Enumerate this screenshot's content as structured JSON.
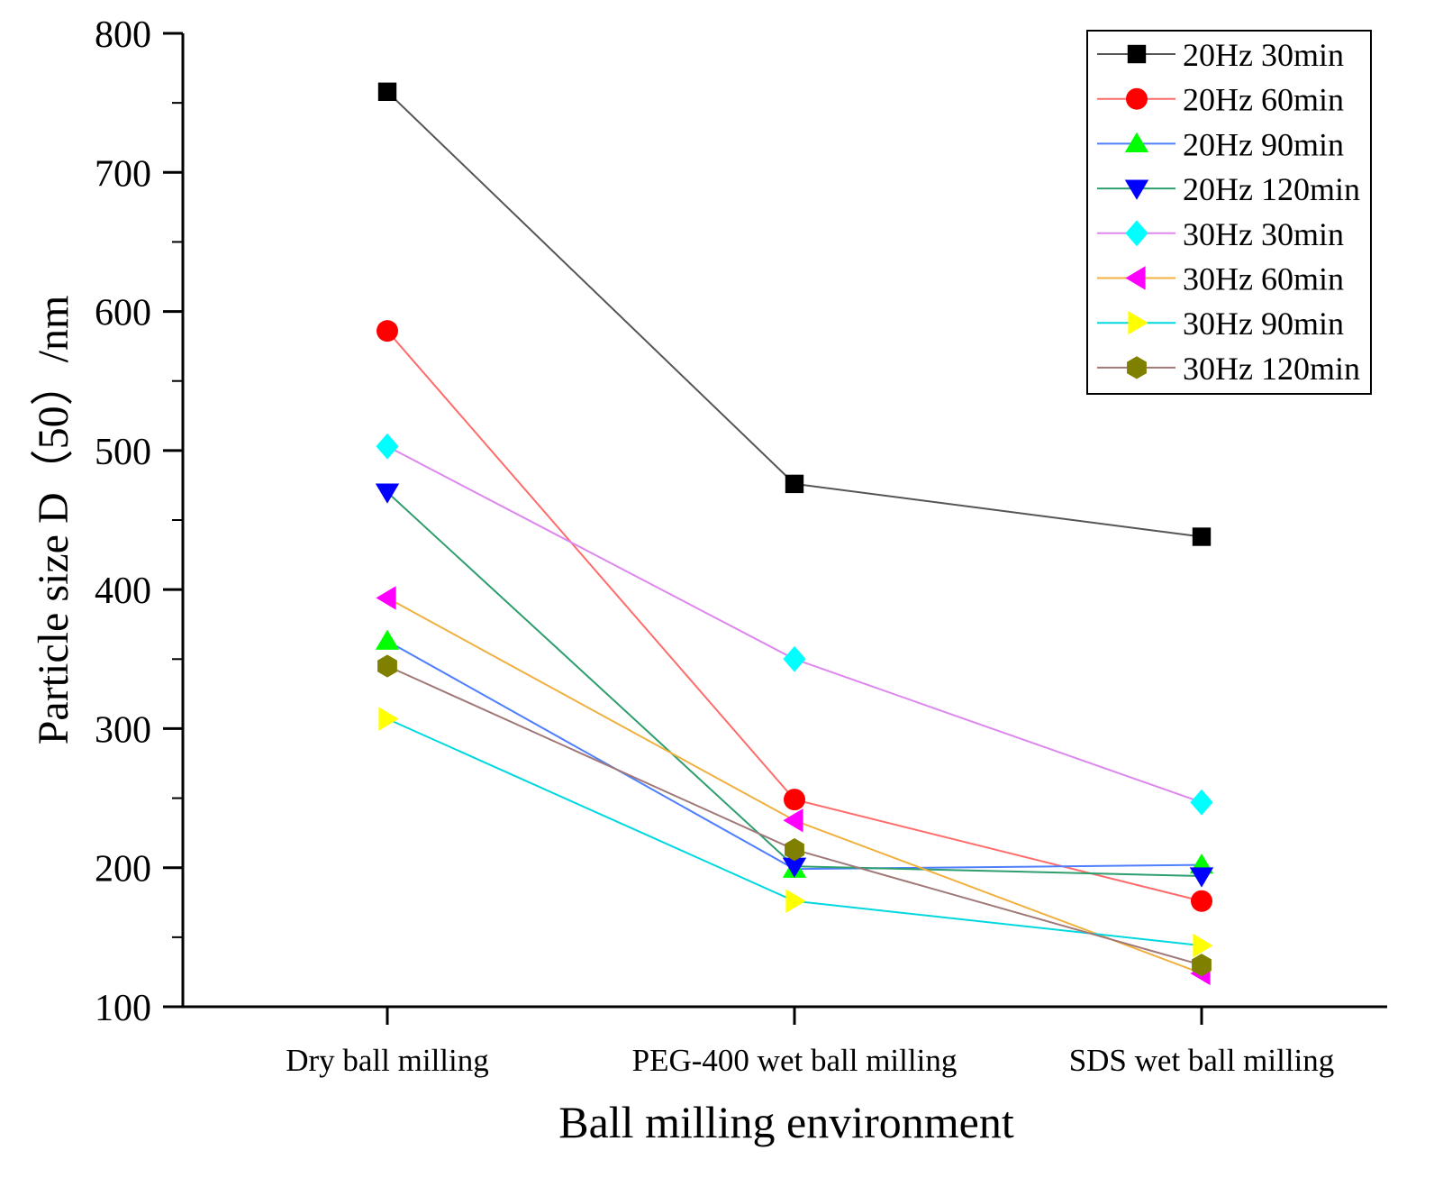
{
  "chart_data": {
    "type": "line",
    "title": "",
    "xlabel": "Ball milling environment",
    "ylabel": "Particle size D（50）/nm",
    "categories": [
      "Dry ball milling",
      "PEG-400 wet ball milling",
      "SDS wet ball milling"
    ],
    "ylim": [
      100,
      800
    ],
    "yticks": [
      100,
      200,
      300,
      400,
      500,
      600,
      700,
      800
    ],
    "grid": false,
    "legend_position": "top-right",
    "series": [
      {
        "name": "20Hz 30min",
        "values": [
          758,
          476,
          438
        ],
        "color": "#000000",
        "line_color": "#555555",
        "marker": "square"
      },
      {
        "name": "20Hz 60min",
        "values": [
          586,
          249,
          176
        ],
        "color": "#ff0000",
        "line_color": "#ff6b6b",
        "marker": "circle"
      },
      {
        "name": "20Hz 90min",
        "values": [
          363,
          199,
          202
        ],
        "color": "#00ff00",
        "line_color": "#4f7fff",
        "marker": "triangle-up"
      },
      {
        "name": "20Hz 120min",
        "values": [
          470,
          201,
          194
        ],
        "color": "#0000ff",
        "line_color": "#2e9e6e",
        "marker": "triangle-down"
      },
      {
        "name": "30Hz 30min",
        "values": [
          503,
          350,
          247
        ],
        "color": "#00ffff",
        "line_color": "#dd88ee",
        "marker": "diamond"
      },
      {
        "name": "30Hz 60min",
        "values": [
          394,
          234,
          124
        ],
        "color": "#ff00ff",
        "line_color": "#f0b040",
        "marker": "triangle-left"
      },
      {
        "name": "30Hz 90min",
        "values": [
          307,
          176,
          144
        ],
        "color": "#ffff00",
        "line_color": "#00d8e0",
        "marker": "triangle-right"
      },
      {
        "name": "30Hz 120min",
        "values": [
          345,
          213,
          130
        ],
        "color": "#808000",
        "line_color": "#a07878",
        "marker": "hexagon"
      }
    ]
  }
}
